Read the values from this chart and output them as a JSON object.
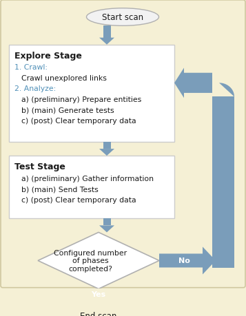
{
  "bg_color": "#f5f0d5",
  "box_color": "#ffffff",
  "arrow_color": "#7a9dba",
  "text_dark": "#1a1a1a",
  "text_blue": "#5090b8",
  "start_label": "Start scan",
  "end_label": "End scan",
  "explore_title": "Explore Stage",
  "test_title": "Test Stage",
  "diamond_label": "Configured number\nof phases\ncompleted?",
  "yes_label": "Yes",
  "no_label": "No",
  "explore_content": [
    {
      "text": "1. Crawl:",
      "blue": true,
      "indent": 0
    },
    {
      "text": "Crawl unexplored links",
      "blue": false,
      "indent": 10
    },
    {
      "text": "2. Analyze:",
      "blue": true,
      "indent": 0
    },
    {
      "text": "a) (preliminary) Prepare entities",
      "blue": false,
      "indent": 10
    },
    {
      "text": "b) (main) Generate tests",
      "blue": false,
      "indent": 10
    },
    {
      "text": "c) (post) Clear temporary data",
      "blue": false,
      "indent": 10
    }
  ],
  "test_content": [
    {
      "text": "a) (preliminary) Gather information",
      "blue": false,
      "indent": 10
    },
    {
      "text": "b) (main) Send Tests",
      "blue": false,
      "indent": 10
    },
    {
      "text": "c) (post) Clear temporary data",
      "blue": false,
      "indent": 10
    }
  ]
}
